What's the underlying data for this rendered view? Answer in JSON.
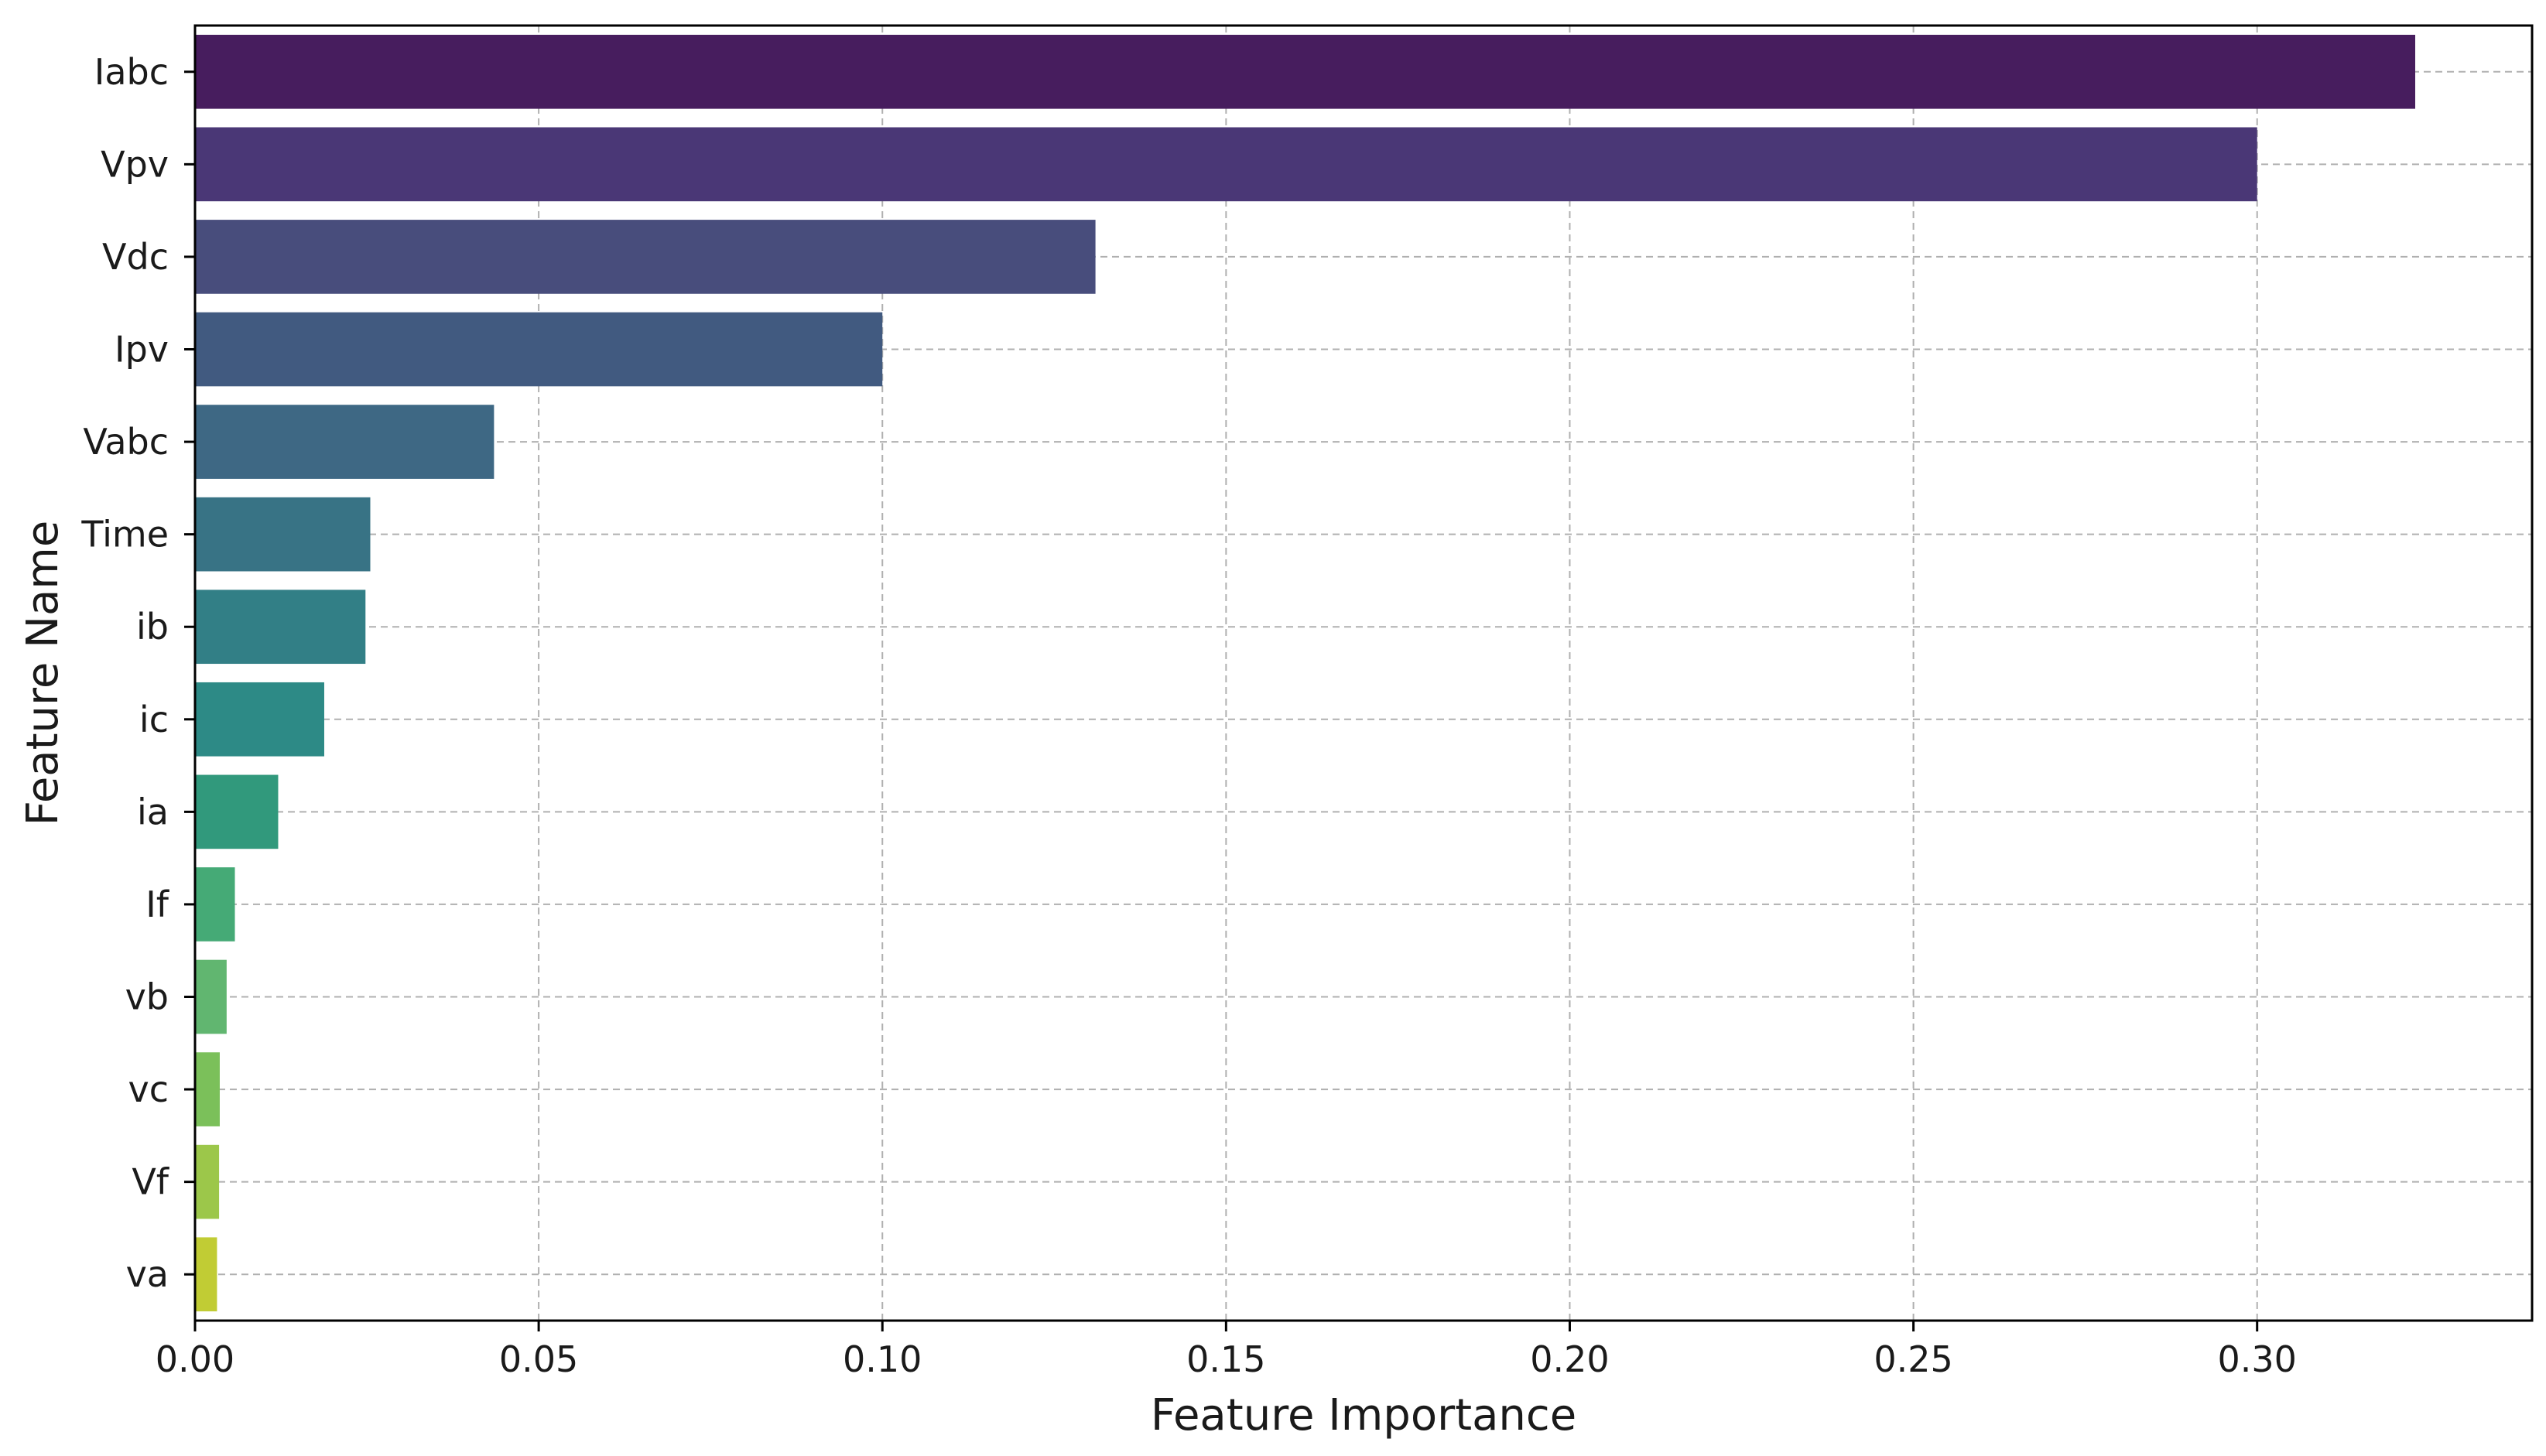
{
  "chart_data": {
    "type": "bar",
    "orientation": "horizontal",
    "xlabel": "Feature Importance",
    "ylabel": "Feature Name",
    "categories": [
      "Iabc",
      "Vpv",
      "Vdc",
      "Ipv",
      "Vabc",
      "Time",
      "ib",
      "ic",
      "ia",
      "If",
      "vb",
      "vc",
      "Vf",
      "va"
    ],
    "values": [
      0.323,
      0.3,
      0.131,
      0.1,
      0.0435,
      0.0255,
      0.0248,
      0.0188,
      0.0121,
      0.0058,
      0.0046,
      0.0036,
      0.0035,
      0.0032
    ],
    "colors": [
      "#471d5e",
      "#4a3776",
      "#484d7c",
      "#415a80",
      "#3e6884",
      "#387385",
      "#327f86",
      "#2d8a86",
      "#31997c",
      "#45aa76",
      "#61b670",
      "#7bc05a",
      "#9cc74a",
      "#c1cc34"
    ],
    "xlim": [
      0,
      0.34
    ],
    "xticks": [
      0.0,
      0.05,
      0.1,
      0.15,
      0.2,
      0.25,
      0.3
    ],
    "xtick_labels": [
      "0.00",
      "0.05",
      "0.10",
      "0.15",
      "0.20",
      "0.25",
      "0.30"
    ],
    "grid": true,
    "grid_style": "dashed"
  }
}
